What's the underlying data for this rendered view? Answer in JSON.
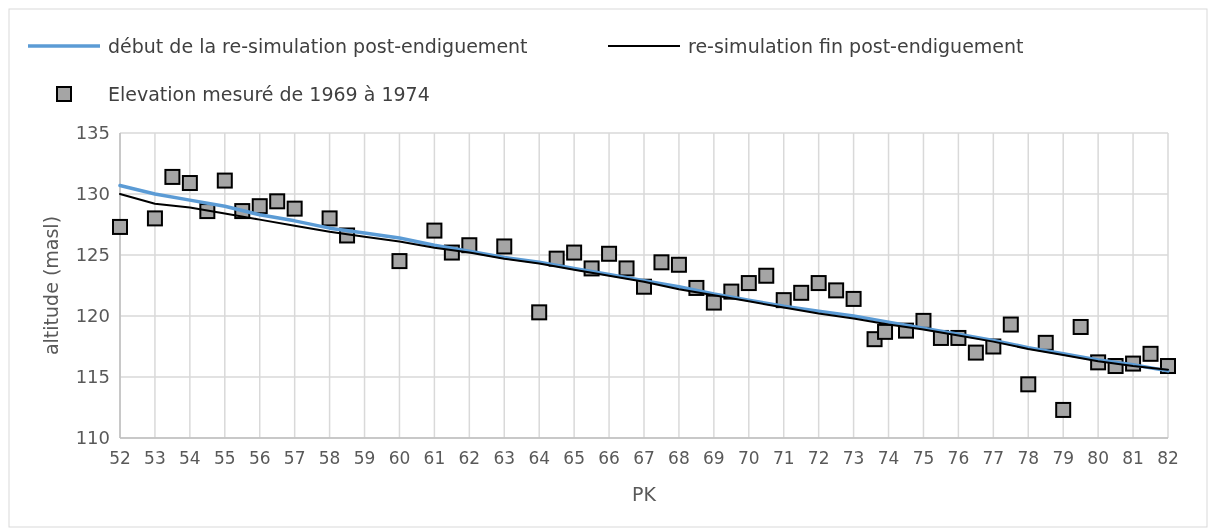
{
  "chart_data": {
    "type": "line",
    "xlabel": "PK",
    "ylabel": "altitude (masl)",
    "xlim": [
      52,
      82
    ],
    "xticks": [
      52,
      53,
      54,
      55,
      56,
      57,
      58,
      59,
      60,
      61,
      62,
      63,
      64,
      65,
      66,
      67,
      68,
      69,
      70,
      71,
      72,
      73,
      74,
      75,
      76,
      77,
      78,
      79,
      80,
      81,
      82
    ],
    "ylim": [
      110,
      135
    ],
    "yticks": [
      110,
      115,
      120,
      125,
      130,
      135
    ],
    "grid": true,
    "legend": "top",
    "series": [
      {
        "name": "début de la re-simulation post-endiguement",
        "type": "line",
        "color": "#5b9bd5",
        "marker": "none",
        "x": [
          52,
          53,
          54,
          55,
          56,
          57,
          58,
          59,
          60,
          61,
          62,
          63,
          64,
          65,
          66,
          67,
          68,
          69,
          70,
          71,
          72,
          73,
          74,
          75,
          76,
          77,
          78,
          79,
          80,
          81,
          82
        ],
        "values": [
          130.7,
          130.0,
          129.5,
          129.0,
          128.3,
          127.8,
          127.2,
          126.8,
          126.4,
          125.8,
          125.3,
          124.8,
          124.4,
          123.9,
          123.4,
          122.9,
          122.4,
          121.8,
          121.3,
          120.8,
          120.4,
          120.0,
          119.5,
          119.0,
          118.5,
          118.0,
          117.4,
          116.9,
          116.4,
          116.0,
          115.5
        ]
      },
      {
        "name": "re-simulation fin post-endiguement",
        "type": "line",
        "color": "#000000",
        "marker": "none",
        "x": [
          52,
          53,
          54,
          55,
          56,
          57,
          58,
          59,
          60,
          61,
          62,
          63,
          64,
          65,
          66,
          67,
          68,
          69,
          70,
          71,
          72,
          73,
          74,
          75,
          76,
          77,
          78,
          79,
          80,
          81,
          82
        ],
        "values": [
          130.0,
          129.2,
          128.9,
          128.4,
          127.9,
          127.4,
          126.9,
          126.5,
          126.1,
          125.6,
          125.2,
          124.7,
          124.3,
          123.8,
          123.3,
          122.8,
          122.2,
          121.7,
          121.2,
          120.7,
          120.2,
          119.8,
          119.3,
          118.9,
          118.4,
          117.9,
          117.3,
          116.8,
          116.3,
          115.9,
          115.6
        ]
      },
      {
        "name": "Elevation mesuré de 1969 à 1974",
        "type": "scatter",
        "color": "#a5a5a5",
        "marker": "square",
        "x": [
          52,
          53,
          53.5,
          54,
          54.5,
          55,
          55.5,
          56,
          56.5,
          57,
          58,
          58.5,
          60,
          61,
          61.5,
          62,
          63,
          64,
          64.5,
          65,
          65.5,
          66,
          66.5,
          67,
          67.5,
          68,
          68.5,
          69,
          69.5,
          70,
          70.5,
          71,
          71.5,
          72,
          72.5,
          73,
          73.6,
          73.9,
          74.5,
          75,
          75.5,
          76,
          76.5,
          77,
          77.5,
          78,
          78.5,
          79,
          79.5,
          80,
          80.5,
          81,
          81.5,
          82
        ],
        "values": [
          127.3,
          128.0,
          131.4,
          130.9,
          128.6,
          131.1,
          128.6,
          129.0,
          129.4,
          128.8,
          128.0,
          126.6,
          124.5,
          127.0,
          125.2,
          125.8,
          125.7,
          120.3,
          124.7,
          125.2,
          123.9,
          125.1,
          123.9,
          122.4,
          124.4,
          124.2,
          122.3,
          121.1,
          122.0,
          122.7,
          123.3,
          121.3,
          121.9,
          122.7,
          122.1,
          121.4,
          118.1,
          118.7,
          118.8,
          119.6,
          118.2,
          118.2,
          117.0,
          117.5,
          119.3,
          114.4,
          117.8,
          112.3,
          119.1,
          116.2,
          115.9,
          116.1,
          116.9,
          115.9
        ]
      }
    ]
  }
}
